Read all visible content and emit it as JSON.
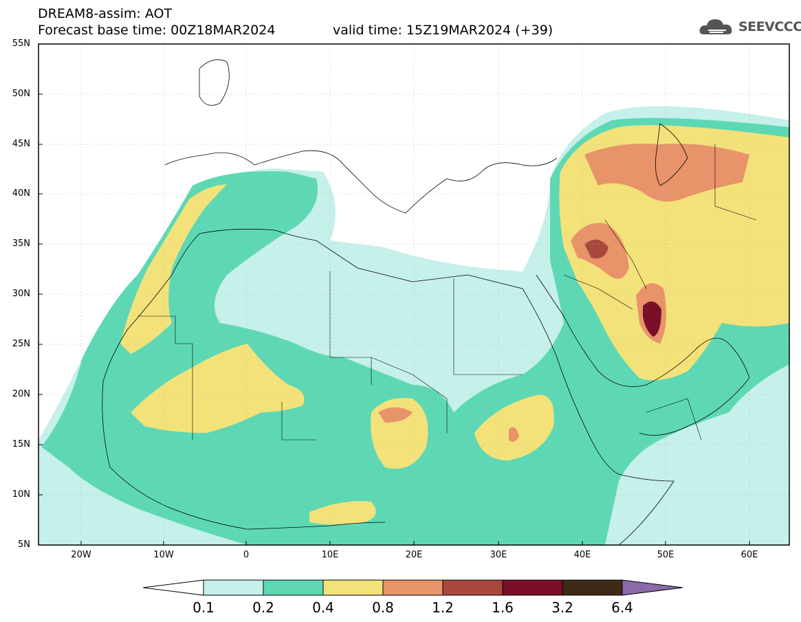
{
  "header": {
    "title": "DREAM8-assim: AOT",
    "base_time": "Forecast base time: 00Z18MAR2024",
    "valid_time": "valid time: 15Z19MAR2024 (+39)"
  },
  "logo": {
    "text": "SEEVCCC",
    "icon": "cloud-icon"
  },
  "map": {
    "lat_labels": [
      "55N",
      "50N",
      "45N",
      "40N",
      "35N",
      "30N",
      "25N",
      "20N",
      "15N",
      "10N",
      "5N"
    ],
    "lon_labels": [
      "20W",
      "10W",
      "0",
      "10E",
      "20E",
      "30E",
      "40E",
      "50E",
      "60E"
    ]
  },
  "colorbar": {
    "labels": [
      "0.1",
      "0.2",
      "0.4",
      "0.8",
      "1.2",
      "1.6",
      "3.2",
      "6.4"
    ],
    "colors": [
      "#c6f0ea",
      "#5ed8b4",
      "#f3e27a",
      "#e8936a",
      "#a8483c",
      "#7a0f2a",
      "#3f2a18",
      "#8a6aa8"
    ]
  }
}
